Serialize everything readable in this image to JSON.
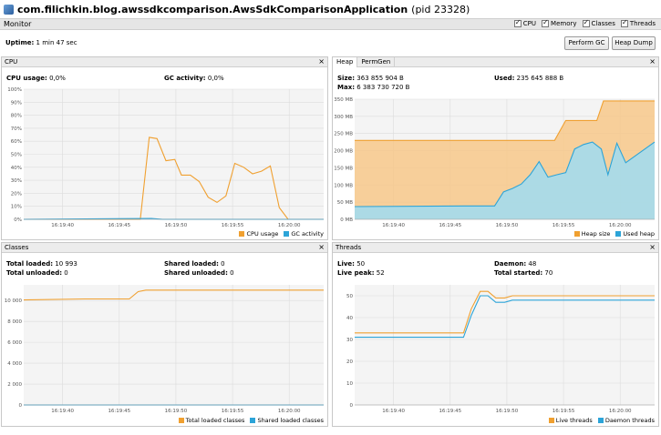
{
  "window": {
    "title_main": "com.filichkin.blog.awssdkcomparison.AwsSdkComparisonApplication",
    "title_pid": "(pid 23328)"
  },
  "monitor": {
    "tab_label": "Monitor",
    "checks": [
      {
        "label": "CPU",
        "checked": true
      },
      {
        "label": "Memory",
        "checked": true
      },
      {
        "label": "Classes",
        "checked": true
      },
      {
        "label": "Threads",
        "checked": true
      }
    ],
    "uptime_label": "Uptime:",
    "uptime_value": "1 min 47 sec",
    "perform_gc_label": "Perform GC",
    "heap_dump_label": "Heap Dump"
  },
  "colors": {
    "orange": "#f0a030",
    "blue": "#2ca4d8",
    "orange_fill": "#f7c88a",
    "blue_fill": "#9fdcf2",
    "grid": "#dcdcdc",
    "plot_bg": "#f4f4f4"
  },
  "cpu": {
    "title": "CPU",
    "usage_label": "CPU usage:",
    "usage_value": "0,0%",
    "gc_label": "GC activity:",
    "gc_value": "0,0%",
    "legend": [
      "CPU usage",
      "GC activity"
    ]
  },
  "heap": {
    "tab_heap": "Heap",
    "tab_permgen": "PermGen",
    "size_label": "Size:",
    "size_value": "363 855 904 B",
    "max_label": "Max:",
    "max_value": "6 383 730 720 B",
    "used_label": "Used:",
    "used_value": "235 645 888 B",
    "legend": [
      "Heap size",
      "Used heap"
    ]
  },
  "classes": {
    "title": "Classes",
    "total_loaded_label": "Total loaded:",
    "total_loaded_value": "10 993",
    "total_unloaded_label": "Total unloaded:",
    "total_unloaded_value": "0",
    "shared_loaded_label": "Shared loaded:",
    "shared_loaded_value": "0",
    "shared_unloaded_label": "Shared unloaded:",
    "shared_unloaded_value": "0",
    "legend": [
      "Total loaded classes",
      "Shared loaded classes"
    ]
  },
  "threads": {
    "title": "Threads",
    "live_label": "Live:",
    "live_value": "50",
    "live_peak_label": "Live peak:",
    "live_peak_value": "52",
    "daemon_label": "Daemon:",
    "daemon_value": "48",
    "total_started_label": "Total started:",
    "total_started_value": "70",
    "legend": [
      "Live threads",
      "Daemon threads"
    ]
  },
  "chart_data": [
    {
      "type": "line",
      "panel": "CPU",
      "x_ticks": [
        "16:19:40",
        "16:19:45",
        "16:19:50",
        "16:19:55",
        "16:20:00",
        "16:20:05"
      ],
      "y_ticks": [
        "0%",
        "10%",
        "20%",
        "30%",
        "40%",
        "50%",
        "60%",
        "70%",
        "80%",
        "90%",
        "100%"
      ],
      "x_range": [
        0,
        27
      ],
      "ylim": [
        0,
        100
      ],
      "series": [
        {
          "name": "CPU usage",
          "color": "#f0a030",
          "x": [
            0,
            10.5,
            11.3,
            12.0,
            12.8,
            13.6,
            14.2,
            15.0,
            15.8,
            16.6,
            17.4,
            18.2,
            19.0,
            19.8,
            20.6,
            21.4,
            22.2,
            23.0,
            23.8,
            24.6,
            25.4,
            27
          ],
          "y": [
            0,
            0,
            63,
            62,
            45,
            46,
            34,
            34,
            29,
            17,
            13,
            18,
            43,
            40,
            35,
            37,
            41,
            9,
            0,
            0,
            0,
            0
          ]
        },
        {
          "name": "GC activity",
          "color": "#2ca4d8",
          "x": [
            0,
            11.5,
            12.5,
            27
          ],
          "y": [
            0,
            0.6,
            0,
            0
          ]
        }
      ]
    },
    {
      "type": "area",
      "panel": "Heap",
      "x_ticks": [
        "16:19:40",
        "16:19:45",
        "16:19:50",
        "16:19:55",
        "16:20:00",
        "16:20:05"
      ],
      "y_ticks": [
        "0 MB",
        "50 MB",
        "100 MB",
        "150 MB",
        "200 MB",
        "250 MB",
        "300 MB",
        "350 MB"
      ],
      "x_range": [
        0,
        27
      ],
      "ylim": [
        0,
        350
      ],
      "series": [
        {
          "name": "Heap size",
          "color": "#f0a030",
          "x": [
            0,
            18.0,
            19.0,
            21.8,
            22.4,
            27
          ],
          "y": [
            230,
            230,
            288,
            288,
            345,
            345
          ]
        },
        {
          "name": "Used heap",
          "color": "#2ca4d8",
          "x": [
            0,
            10.0,
            11.0,
            11.8,
            12.6,
            13.4,
            14.2,
            15.0,
            15.8,
            16.6,
            17.4,
            18.2,
            19.0,
            19.8,
            20.6,
            21.4,
            22.2,
            22.8,
            23.6,
            24.4,
            27
          ],
          "y": [
            37,
            39,
            39,
            39,
            39,
            80,
            90,
            103,
            130,
            168,
            123,
            130,
            136,
            205,
            218,
            225,
            205,
            130,
            222,
            165,
            225
          ]
        }
      ]
    },
    {
      "type": "line",
      "panel": "Classes",
      "x_ticks": [
        "16:19:40",
        "16:19:45",
        "16:19:50",
        "16:19:55",
        "16:20:00",
        "16:20:05"
      ],
      "y_ticks": [
        "0",
        "2 000",
        "4 000",
        "6 000",
        "8 000",
        "10 000"
      ],
      "x_range": [
        0,
        27
      ],
      "ylim": [
        0,
        11500
      ],
      "series": [
        {
          "name": "Total loaded classes",
          "color": "#f0a030",
          "x": [
            0,
            5.5,
            9.5,
            10.3,
            11.0,
            27
          ],
          "y": [
            10050,
            10150,
            10150,
            10850,
            10993,
            10993
          ]
        },
        {
          "name": "Shared loaded classes",
          "color": "#2ca4d8",
          "x": [
            0,
            27
          ],
          "y": [
            0,
            0
          ]
        }
      ]
    },
    {
      "type": "line",
      "panel": "Threads",
      "x_ticks": [
        "16:19:40",
        "16:19:45",
        "16:19:50",
        "16:19:55",
        "16:20:00",
        "16:20:05"
      ],
      "y_ticks": [
        "0",
        "10",
        "20",
        "30",
        "40",
        "50"
      ],
      "x_range": [
        0,
        27
      ],
      "ylim": [
        0,
        55
      ],
      "series": [
        {
          "name": "Live threads",
          "color": "#f0a030",
          "x": [
            0,
            9.8,
            10.5,
            11.3,
            12.0,
            12.7,
            13.5,
            14.2,
            15.0,
            27
          ],
          "y": [
            33,
            33,
            44,
            52,
            52,
            49,
            49,
            50,
            50,
            50
          ]
        },
        {
          "name": "Daemon threads",
          "color": "#2ca4d8",
          "x": [
            0,
            9.8,
            10.5,
            11.3,
            12.0,
            12.7,
            13.5,
            14.2,
            15.0,
            27
          ],
          "y": [
            31,
            31,
            41,
            50,
            50,
            47,
            47,
            48,
            48,
            48
          ]
        }
      ]
    }
  ]
}
